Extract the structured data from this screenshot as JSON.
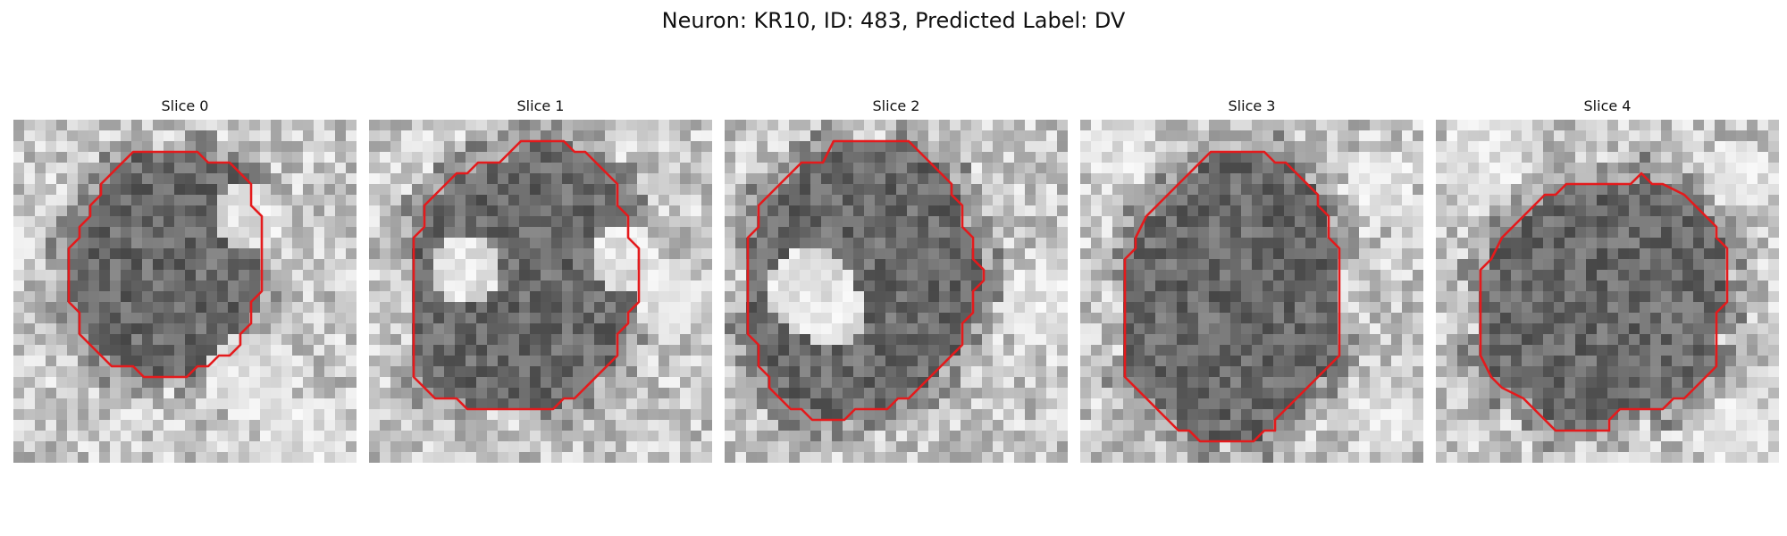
{
  "figure": {
    "title": "Neuron: KR10, ID: 483, Predicted Label: DV"
  },
  "colors": {
    "contour": "#e41a1c",
    "colormap": "gray"
  },
  "slices": [
    {
      "title": "Slice 0"
    },
    {
      "title": "Slice 1"
    },
    {
      "title": "Slice 2"
    },
    {
      "title": "Slice 3"
    },
    {
      "title": "Slice 4"
    }
  ]
}
